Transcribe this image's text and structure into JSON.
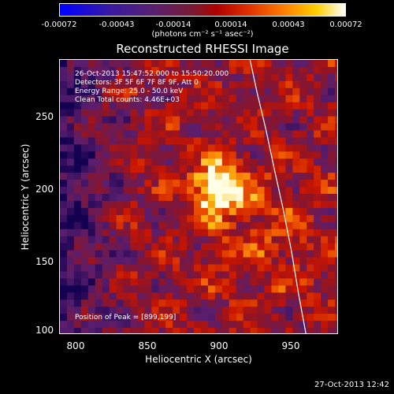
{
  "colorbar": {
    "ticks": [
      "-0.00072",
      "-0.00043",
      "-0.00014",
      "0.00014",
      "0.00043",
      "0.00072"
    ],
    "unit_label": "(photons cm⁻² s⁻¹ asec⁻²)"
  },
  "chart_data": {
    "type": "heatmap",
    "title": "Reconstructed RHESSI Image",
    "xlabel": "Heliocentric X (arcsec)",
    "ylabel": "Heliocentric Y (arcsec)",
    "xlim": [
      788,
      982
    ],
    "ylim": [
      98,
      288
    ],
    "x_ticks": [
      "800",
      "850",
      "900",
      "950"
    ],
    "y_ticks": [
      "250",
      "200",
      "150",
      "100"
    ],
    "color_range": [
      -0.00072,
      0.00072
    ],
    "peak": [
      899,
      199
    ],
    "limb_curve_x": [
      921,
      926,
      932,
      938,
      944,
      950,
      955,
      960
    ],
    "limb_curve_y": [
      288,
      265,
      240,
      212,
      185,
      155,
      125,
      98
    ],
    "info_lines": [
      "26-Oct-2013 15:47:52.000 to 15:50:20.000",
      "Detectors: 3F 5F 6F 7F 8F 9F, Att 0",
      "Energy Range: 25.0 - 50.0 keV",
      "Clean     Total counts: 4.46E+03"
    ],
    "peak_label": "Position of Peak = [899,199]",
    "colors": {
      "limb": "#ffffff",
      "axes": "#ffffff",
      "background": "#000000"
    }
  },
  "timestamp": "27-Oct-2013 12:42"
}
